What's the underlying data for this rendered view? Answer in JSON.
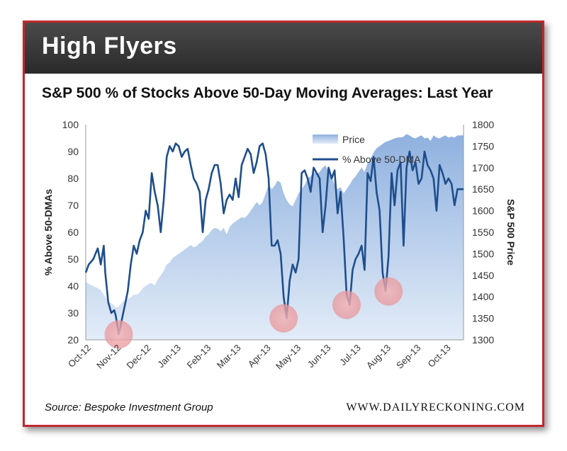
{
  "header": {
    "title": "High Flyers"
  },
  "footer": {
    "source": "Source: Bespoke Investment Group",
    "site": "WWW.DAILYRECKONING.COM"
  },
  "colors": {
    "frame": "#c1272d",
    "line": "#1f4e8c",
    "area_top": "#8fb1df",
    "area_bottom": "#dde8f6",
    "highlight": "#e8969a"
  },
  "chart_data": {
    "type": "line",
    "title": "S&P 500 % of Stocks Above 50-Day Moving Averages: Last Year",
    "ylabel": "% Above 50-DMAs",
    "y2label": "S&P 500 Price",
    "ylim": [
      20,
      100
    ],
    "y2lim": [
      1300,
      1800
    ],
    "yticks": [
      "100",
      "90",
      "80",
      "70",
      "60",
      "50",
      "40",
      "30",
      "20"
    ],
    "y2ticks": [
      "1800",
      "1750",
      "1700",
      "1650",
      "1600",
      "1550",
      "1500",
      "1450",
      "1400",
      "1350",
      "1300"
    ],
    "categories": [
      "Oct-12",
      "Nov-12",
      "Dec-12",
      "Jan-13",
      "Feb-13",
      "Mar-13",
      "Apr-13",
      "May-13",
      "Jun-13",
      "Jul-13",
      "Aug-13",
      "Sep-13",
      "Oct-13"
    ],
    "legend": [
      "Price",
      "% Above 50-DMA"
    ],
    "x": [
      0,
      0.1,
      0.25,
      0.4,
      0.5,
      0.6,
      0.65,
      0.75,
      0.85,
      0.95,
      1.0,
      1.1,
      1.25,
      1.4,
      1.5,
      1.6,
      1.7,
      1.8,
      1.9,
      2.0,
      2.1,
      2.2,
      2.3,
      2.4,
      2.5,
      2.6,
      2.7,
      2.8,
      2.9,
      3.0,
      3.1,
      3.2,
      3.3,
      3.4,
      3.5,
      3.6,
      3.7,
      3.8,
      3.9,
      4.0,
      4.1,
      4.2,
      4.3,
      4.4,
      4.5,
      4.6,
      4.7,
      4.8,
      4.9,
      5.0,
      5.1,
      5.2,
      5.3,
      5.4,
      5.5,
      5.6,
      5.7,
      5.8,
      5.9,
      6.0,
      6.1,
      6.2,
      6.3,
      6.4,
      6.5,
      6.6,
      6.7,
      6.8,
      6.9,
      7.0,
      7.1,
      7.2,
      7.3,
      7.4,
      7.5,
      7.6,
      7.7,
      7.8,
      7.9,
      8.0,
      8.1,
      8.2,
      8.3,
      8.4,
      8.5,
      8.6,
      8.7,
      8.8,
      8.9,
      9.0,
      9.1,
      9.2,
      9.3,
      9.4,
      9.5,
      9.6,
      9.7,
      9.8,
      9.9,
      10.0,
      10.1,
      10.2,
      10.3,
      10.4,
      10.5,
      10.6,
      10.7,
      10.8,
      10.9,
      11.0,
      11.1,
      11.2,
      11.3,
      11.4,
      11.5,
      11.6,
      11.7,
      11.8,
      11.9,
      12.0,
      12.1,
      12.2,
      12.3,
      12.4,
      12.6
    ],
    "pct_above_50dma": [
      45,
      48,
      50,
      54,
      48,
      55,
      45,
      34,
      30,
      31,
      29,
      22,
      30,
      38,
      48,
      55,
      52,
      57,
      60,
      68,
      65,
      82,
      75,
      70,
      60,
      72,
      88,
      92,
      90,
      93,
      92,
      88,
      90,
      91,
      85,
      80,
      78,
      75,
      60,
      72,
      76,
      82,
      85,
      85,
      78,
      67,
      72,
      74,
      72,
      80,
      73,
      85,
      88,
      91,
      89,
      82,
      86,
      92,
      93,
      89,
      80,
      55,
      55,
      57,
      52,
      36,
      28,
      42,
      48,
      45,
      50,
      82,
      83,
      80,
      75,
      84,
      82,
      80,
      60,
      70,
      84,
      80,
      83,
      67,
      75,
      58,
      37,
      33,
      46,
      50,
      52,
      55,
      46,
      82,
      79,
      88,
      75,
      68,
      45,
      38,
      51,
      82,
      70,
      83,
      86,
      55,
      84,
      90,
      83,
      86,
      78,
      80,
      90,
      85,
      83,
      80,
      68,
      85,
      82,
      78,
      80,
      78,
      70,
      76,
      76
    ],
    "price": [
      1435,
      1430,
      1425,
      1420,
      1415,
      1405,
      1400,
      1390,
      1385,
      1380,
      1375,
      1378,
      1390,
      1395,
      1398,
      1405,
      1405,
      1410,
      1420,
      1425,
      1430,
      1432,
      1426,
      1440,
      1450,
      1460,
      1475,
      1480,
      1490,
      1495,
      1500,
      1505,
      1510,
      1515,
      1520,
      1515,
      1518,
      1525,
      1530,
      1540,
      1545,
      1555,
      1560,
      1558,
      1552,
      1560,
      1545,
      1562,
      1570,
      1575,
      1580,
      1585,
      1583,
      1590,
      1600,
      1610,
      1620,
      1612,
      1620,
      1640,
      1660,
      1650,
      1658,
      1670,
      1665,
      1640,
      1625,
      1615,
      1610,
      1625,
      1640,
      1650,
      1660,
      1675,
      1680,
      1690,
      1685,
      1690,
      1700,
      1705,
      1690,
      1680,
      1660,
      1650,
      1655,
      1640,
      1650,
      1660,
      1672,
      1680,
      1690,
      1700,
      1690,
      1710,
      1720,
      1735,
      1745,
      1750,
      1755,
      1760,
      1762,
      1765,
      1768,
      1770,
      1770,
      1772,
      1778,
      1775,
      1770,
      1768,
      1772,
      1775,
      1768,
      1770,
      1762,
      1775,
      1770,
      1768,
      1772,
      1775,
      1770,
      1772,
      1770,
      1775,
      1775
    ],
    "highlights": [
      {
        "x": 1.1,
        "y": 22
      },
      {
        "x": 6.6,
        "y": 28
      },
      {
        "x": 8.7,
        "y": 33
      },
      {
        "x": 10.1,
        "y": 38
      }
    ]
  }
}
